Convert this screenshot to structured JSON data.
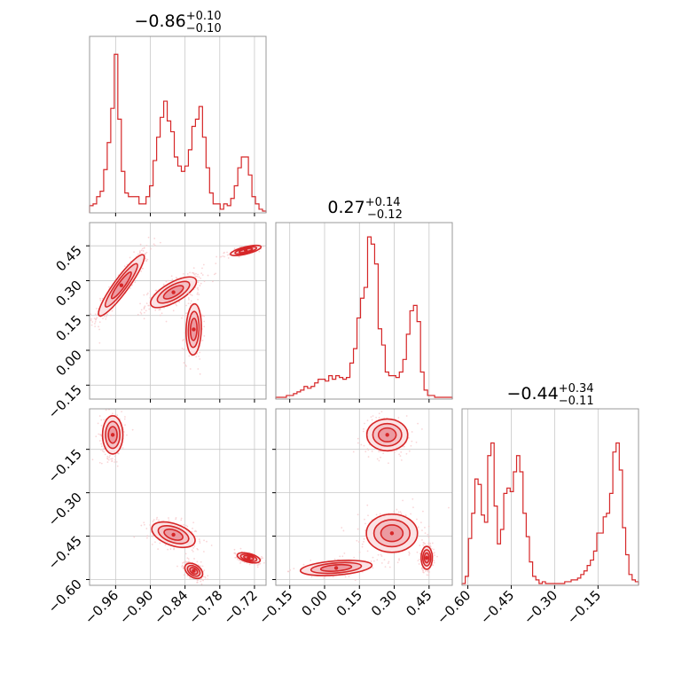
{
  "chart_data": {
    "type": "corner",
    "color": "#d62728",
    "fill_color": "#f0b4b9",
    "panel_border": "#999999",
    "grid_color": "#c8c8c8",
    "grid": true,
    "titles": [
      {
        "median": "−0.86",
        "plus": "+0.10",
        "minus": "−0.10"
      },
      {
        "median": "0.27",
        "plus": "+0.14",
        "minus": "−0.12"
      },
      {
        "median": "−0.44",
        "plus": "+0.34",
        "minus": "−0.11"
      }
    ],
    "params": [
      {
        "range": [
          -1.005,
          -0.7
        ],
        "ticks": [
          -0.96,
          -0.9,
          -0.84,
          -0.78,
          -0.72
        ],
        "tick_labels": [
          "−0.96",
          "−0.90",
          "−0.84",
          "−0.78",
          "−0.72"
        ]
      },
      {
        "range": [
          -0.21,
          0.55
        ],
        "ticks": [
          -0.15,
          0.0,
          0.15,
          0.3,
          0.45
        ],
        "tick_labels": [
          "−0.15",
          "0.00",
          "0.15",
          "0.30",
          "0.45"
        ]
      },
      {
        "range": [
          -0.62,
          -0.01
        ],
        "ticks": [
          -0.6,
          -0.45,
          -0.3,
          -0.15
        ],
        "tick_labels": [
          "−0.60",
          "−0.45",
          "−0.30",
          "−0.15"
        ]
      }
    ],
    "histograms": [
      {
        "bins": [
          -1.005,
          -0.7
        ],
        "heights": [
          0.04,
          0.05,
          0.09,
          0.12,
          0.24,
          0.39,
          0.58,
          0.88,
          0.52,
          0.23,
          0.11,
          0.09,
          0.09,
          0.09,
          0.05,
          0.05,
          0.09,
          0.15,
          0.29,
          0.42,
          0.53,
          0.62,
          0.51,
          0.45,
          0.31,
          0.26,
          0.23,
          0.26,
          0.35,
          0.48,
          0.52,
          0.59,
          0.42,
          0.25,
          0.11,
          0.05,
          0.05,
          0.02,
          0.05,
          0.04,
          0.08,
          0.15,
          0.25,
          0.31,
          0.31,
          0.21,
          0.09,
          0.05,
          0.02,
          0.01
        ]
      },
      {
        "bins": [
          -0.21,
          0.55
        ],
        "heights": [
          0.01,
          0.01,
          0.01,
          0.02,
          0.02,
          0.03,
          0.04,
          0.05,
          0.07,
          0.06,
          0.07,
          0.09,
          0.11,
          0.11,
          0.1,
          0.13,
          0.11,
          0.13,
          0.12,
          0.11,
          0.12,
          0.2,
          0.28,
          0.45,
          0.56,
          0.62,
          0.9,
          0.86,
          0.75,
          0.39,
          0.3,
          0.15,
          0.13,
          0.13,
          0.12,
          0.15,
          0.22,
          0.36,
          0.49,
          0.52,
          0.43,
          0.15,
          0.05,
          0.02,
          0.02,
          0.01,
          0.01,
          0.01,
          0.01,
          0.01
        ]
      },
      {
        "bins": [
          -0.62,
          -0.01
        ],
        "heights": [
          0.01,
          0.05,
          0.26,
          0.4,
          0.59,
          0.56,
          0.39,
          0.35,
          0.72,
          0.79,
          0.44,
          0.23,
          0.31,
          0.51,
          0.54,
          0.52,
          0.63,
          0.72,
          0.63,
          0.4,
          0.27,
          0.13,
          0.05,
          0.03,
          0.01,
          0.02,
          0.01,
          0.01,
          0.01,
          0.01,
          0.01,
          0.01,
          0.02,
          0.02,
          0.03,
          0.03,
          0.04,
          0.06,
          0.08,
          0.11,
          0.14,
          0.19,
          0.29,
          0.29,
          0.38,
          0.4,
          0.51,
          0.74,
          0.79,
          0.64,
          0.32,
          0.17,
          0.06,
          0.03,
          0.02
        ]
      }
    ],
    "clusters": {
      "p1_p0": [
        {
          "cx": -0.95,
          "cy": 0.28,
          "sx": 0.018,
          "sy": 0.06,
          "rho": 0.92,
          "n": 380
        },
        {
          "cx": -0.86,
          "cy": 0.25,
          "sx": 0.018,
          "sy": 0.03,
          "rho": 0.7,
          "n": 300
        },
        {
          "cx": -0.825,
          "cy": 0.09,
          "sx": 0.006,
          "sy": 0.05,
          "rho": 0.1,
          "n": 220
        },
        {
          "cx": -0.735,
          "cy": 0.43,
          "sx": 0.012,
          "sy": 0.01,
          "rho": 0.7,
          "n": 200
        }
      ],
      "p2_p0": [
        {
          "cx": -0.965,
          "cy": -0.1,
          "sx": 0.008,
          "sy": 0.03,
          "rho": 0.0,
          "n": 250
        },
        {
          "cx": -0.86,
          "cy": -0.445,
          "sx": 0.017,
          "sy": 0.02,
          "rho": -0.45,
          "n": 260
        },
        {
          "cx": -0.825,
          "cy": -0.57,
          "sx": 0.007,
          "sy": 0.012,
          "rho": -0.4,
          "n": 180
        },
        {
          "cx": -0.73,
          "cy": -0.525,
          "sx": 0.009,
          "sy": 0.008,
          "rho": -0.5,
          "n": 170
        }
      ],
      "p2_p1": [
        {
          "cx": 0.27,
          "cy": -0.1,
          "sx": 0.04,
          "sy": 0.025,
          "rho": 0.0,
          "n": 250
        },
        {
          "cx": 0.29,
          "cy": -0.44,
          "sx": 0.05,
          "sy": 0.03,
          "rho": 0.0,
          "n": 260
        },
        {
          "cx": 0.44,
          "cy": -0.525,
          "sx": 0.011,
          "sy": 0.018,
          "rho": 0.0,
          "n": 180
        },
        {
          "cx": 0.05,
          "cy": -0.56,
          "sx": 0.07,
          "sy": 0.012,
          "rho": 0.35,
          "n": 170
        }
      ]
    }
  }
}
